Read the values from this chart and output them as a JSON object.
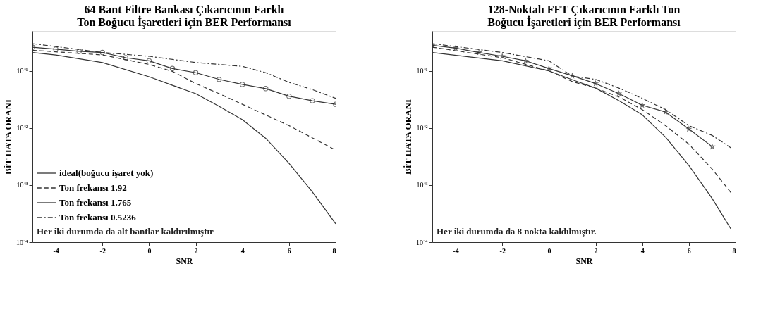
{
  "chart_data": [
    {
      "type": "line",
      "title": "64 Bant Filtre Bankası Çıkarıcının Farklı\nTon Boğucu İşaretleri için BER Performansı",
      "xlabel": "SNR",
      "ylabel": "BİT HATA ORANI",
      "log": "y",
      "xlim": [
        -5,
        8
      ],
      "xticks": [
        -4,
        -2,
        0,
        2,
        4,
        6,
        8
      ],
      "ylim": [
        0.0001,
        0.5
      ],
      "yticks": [
        {
          "value": 0.1,
          "label": "10⁻¹"
        },
        {
          "value": 0.01,
          "label": "10⁻²"
        },
        {
          "value": 0.001,
          "label": "10⁻³"
        },
        {
          "value": 0.0001,
          "label": "10⁻⁴"
        }
      ],
      "grid": false,
      "legend": "bottom left",
      "annotations": [
        "Her iki durumda da alt bantlar kaldırılmıştır"
      ],
      "series": [
        {
          "name": "ideal(boğucu işaret yok)",
          "color": "#333333",
          "line_style": "solid",
          "marker": "none",
          "x": [
            -5,
            -4,
            -2,
            0,
            1,
            2,
            3,
            4,
            5,
            6,
            7,
            8
          ],
          "values": [
            0.21,
            0.19,
            0.14,
            0.079,
            0.056,
            0.04,
            0.024,
            0.014,
            0.0066,
            0.0024,
            0.00076,
            0.00021
          ]
        },
        {
          "name": "Ton frekansı 1.92",
          "color": "#333333",
          "line_style": "dashed",
          "marker": "none",
          "x": [
            -5,
            -2,
            0,
            1,
            2,
            3,
            4,
            6,
            7.9
          ],
          "values": [
            0.23,
            0.19,
            0.13,
            0.098,
            0.06,
            0.04,
            0.026,
            0.011,
            0.0043
          ]
        },
        {
          "name": "Ton frekansı 1.765",
          "color": "#333333",
          "line_style": "solid",
          "marker": "circle",
          "x": [
            -5,
            -4,
            -3,
            -2,
            -1,
            0,
            1,
            2,
            3,
            4,
            5,
            6,
            7,
            8
          ],
          "values": [
            0.26,
            0.24,
            0.22,
            0.21,
            0.17,
            0.15,
            0.11,
            0.093,
            0.071,
            0.058,
            0.049,
            0.036,
            0.03,
            0.026
          ]
        },
        {
          "name": "Ton frekansı 0.5236",
          "color": "#333333",
          "line_style": "dashdot",
          "marker": "none",
          "x": [
            -5,
            -2,
            0,
            2,
            3,
            4,
            5,
            6,
            7,
            8
          ],
          "values": [
            0.3,
            0.21,
            0.18,
            0.14,
            0.13,
            0.12,
            0.093,
            0.063,
            0.047,
            0.033
          ]
        }
      ]
    },
    {
      "type": "line",
      "title": "128-Noktalı FFT Çıkarıcının Farklı Ton\nBoğucu İşaretleri için BER Performansı",
      "xlabel": "SNR",
      "ylabel": "BİT HATA ORANI",
      "log": "y",
      "xlim": [
        -5,
        8
      ],
      "xticks": [
        -4,
        -2,
        0,
        2,
        4,
        6,
        8
      ],
      "ylim": [
        0.0001,
        0.5
      ],
      "yticks": [
        {
          "value": 0.1,
          "label": "10⁻¹"
        },
        {
          "value": 0.01,
          "label": "10⁻²"
        },
        {
          "value": 0.001,
          "label": "10⁻³"
        },
        {
          "value": 0.0001,
          "label": "10⁻⁴"
        }
      ],
      "grid": false,
      "legend": "bottom left",
      "annotations": [
        "Her iki durumda da 8 nokta kaldılmıştır."
      ],
      "series": [
        {
          "name": "ideal(boğucu işaret yok)",
          "color": "#333333",
          "line_style": "solid",
          "marker": "none",
          "x": [
            -5,
            -2,
            0,
            1,
            2,
            3,
            4,
            5,
            6,
            7,
            7.8
          ],
          "values": [
            0.21,
            0.15,
            0.1,
            0.07,
            0.05,
            0.03,
            0.017,
            0.0069,
            0.0022,
            0.00058,
            0.00017
          ]
        },
        {
          "name": "Ton frekansı 1.92",
          "color": "#333333",
          "line_style": "dashed",
          "marker": "none",
          "x": [
            -5,
            -2,
            0,
            1,
            2,
            3,
            4,
            5,
            6,
            7,
            7.8
          ],
          "values": [
            0.26,
            0.17,
            0.1,
            0.065,
            0.05,
            0.035,
            0.021,
            0.011,
            0.0052,
            0.0019,
            0.00074
          ]
        },
        {
          "name": "Ton frekansı 1.765",
          "color": "#333333",
          "line_style": "solid",
          "marker": "star",
          "x": [
            -5,
            -4,
            -3,
            -2,
            -1,
            0,
            1,
            2,
            3,
            4,
            5,
            6,
            7
          ],
          "values": [
            0.28,
            0.25,
            0.21,
            0.18,
            0.15,
            0.11,
            0.082,
            0.06,
            0.04,
            0.025,
            0.019,
            0.0096,
            0.0047
          ]
        },
        {
          "name": "Ton frekansı 0.5236",
          "color": "#333333",
          "line_style": "dashdot",
          "marker": "none",
          "x": [
            -5,
            -2,
            0,
            1,
            2,
            3,
            4,
            5,
            6,
            7,
            7.8
          ],
          "values": [
            0.3,
            0.21,
            0.15,
            0.081,
            0.071,
            0.05,
            0.033,
            0.021,
            0.011,
            0.0074,
            0.0045
          ]
        }
      ]
    }
  ]
}
